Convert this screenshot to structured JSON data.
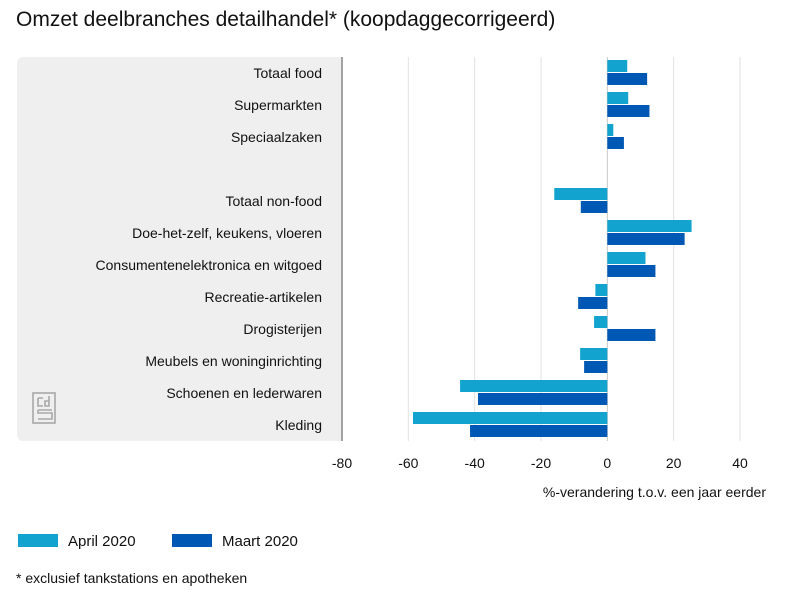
{
  "chart_data": {
    "type": "bar",
    "orientation": "horizontal",
    "title": "Omzet deelbranches detailhandel* (koopdaggecorrigeerd)",
    "xlabel": "%-verandering t.o.v. een jaar eerder",
    "xlim": [
      -80,
      40
    ],
    "xticks": [
      -80,
      -60,
      -40,
      -20,
      0,
      20,
      40
    ],
    "grid": true,
    "legend_position": "bottom-left",
    "categories": [
      "Totaal food",
      "Supermarkten",
      "Speciaalzaken",
      "",
      "Totaal non-food",
      "Doe-het-zelf, keukens, vloeren",
      "Consumentenelektronica en witgoed",
      "Recreatie-artikelen",
      "Drogisterijen",
      "Meubels en woninginrichting",
      "Schoenen en lederwaren",
      "Kleding"
    ],
    "series": [
      {
        "name": "April 2020",
        "color": "#13a3cf",
        "values": [
          6,
          6.3,
          1.8,
          null,
          -16,
          25.4,
          11.5,
          -3.6,
          -4,
          -8.2,
          -44.4,
          -58.6
        ]
      },
      {
        "name": "Maart 2020",
        "color": "#0058b5",
        "values": [
          12,
          12.7,
          5,
          null,
          -8,
          23.3,
          14.5,
          -8.8,
          14.5,
          -7,
          -39,
          -41.4
        ]
      }
    ],
    "footnote": "* exclusief tankstations en apotheken"
  },
  "logo": "cbs"
}
